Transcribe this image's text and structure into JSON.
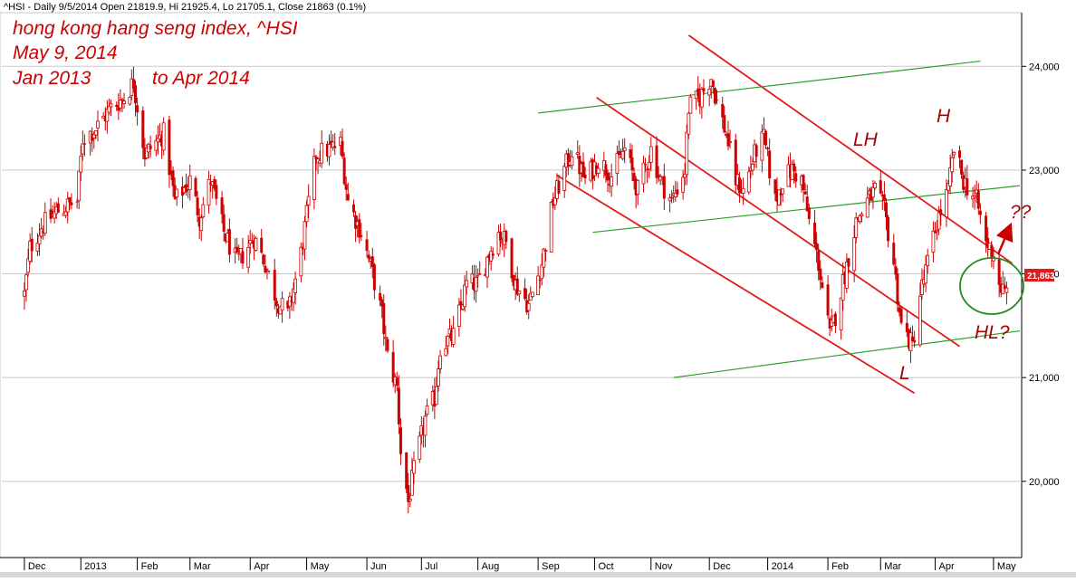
{
  "header": "^HSI - Daily 9/5/2014 Open 21819.9, Hi 21925.4, Lo 21705.1, Close 21863 (0.1%)",
  "annotations": {
    "line1": "hong kong hang seng index, ^HSI",
    "line2": "May 9, 2014",
    "line3a": "Jan 2013",
    "line3b": "to Apr 2014"
  },
  "pattern_labels": {
    "lh": "LH",
    "h": "H",
    "l": "L",
    "hl": "HL?",
    "question": "??"
  },
  "last_price": "21,863",
  "colors": {
    "candle": "#cc0000",
    "trend_red": "#e31a1a",
    "trend_green": "#2ca02c",
    "circle": "#228b22",
    "price_tag": "#e31a1a"
  },
  "chart_data": {
    "type": "candlestick",
    "title": "^HSI - Daily 9/5/2014 Open 21819.9, Hi 21925.4, Lo 21705.1, Close 21863 (0.1%)",
    "ylim": [
      19300,
      24500
    ],
    "y_ticks": [
      "20,000",
      "21,000",
      "22,000",
      "23,000",
      "24,000"
    ],
    "y_tick_values": [
      20000,
      21000,
      22000,
      23000,
      24000
    ],
    "x_tick_labels": [
      "Dec",
      "2013",
      "Feb",
      "Mar",
      "Apr",
      "May",
      "Jun",
      "Jul",
      "Aug",
      "Sep",
      "Oct",
      "Nov",
      "Dec",
      "2014",
      "Feb",
      "Mar",
      "Apr",
      "May"
    ],
    "x_tick_dates": [
      "2012-12-03",
      "2013-01-02",
      "2013-02-01",
      "2013-03-01",
      "2013-04-02",
      "2013-05-02",
      "2013-06-03",
      "2013-07-02",
      "2013-08-01",
      "2013-09-02",
      "2013-10-02",
      "2013-11-01",
      "2013-12-02",
      "2014-01-02",
      "2014-02-03",
      "2014-03-03",
      "2014-04-01",
      "2014-05-02"
    ],
    "x_range": [
      "2012-11-21",
      "2014-05-16"
    ],
    "series_path": [
      [
        "2012-12-03",
        21800
      ],
      [
        "2012-12-06",
        22250
      ],
      [
        "2012-12-12",
        22450
      ],
      [
        "2012-12-20",
        22600
      ],
      [
        "2012-12-31",
        22700
      ],
      [
        "2013-01-03",
        23300
      ],
      [
        "2013-01-10",
        23400
      ],
      [
        "2013-01-18",
        23600
      ],
      [
        "2013-01-25",
        23700
      ],
      [
        "2013-01-30",
        23850
      ],
      [
        "2013-02-05",
        23150
      ],
      [
        "2013-02-15",
        23350
      ],
      [
        "2013-02-21",
        22700
      ],
      [
        "2013-03-01",
        22900
      ],
      [
        "2013-03-06",
        22550
      ],
      [
        "2013-03-12",
        22900
      ],
      [
        "2013-03-19",
        22400
      ],
      [
        "2013-03-26",
        22100
      ],
      [
        "2013-04-04",
        22350
      ],
      [
        "2013-04-10",
        22100
      ],
      [
        "2013-04-16",
        21750
      ],
      [
        "2013-04-22",
        21600
      ],
      [
        "2013-04-29",
        22200
      ],
      [
        "2013-05-07",
        23150
      ],
      [
        "2013-05-14",
        23200
      ],
      [
        "2013-05-20",
        23250
      ],
      [
        "2013-05-24",
        22700
      ],
      [
        "2013-05-31",
        22400
      ],
      [
        "2013-06-06",
        22000
      ],
      [
        "2013-06-11",
        21600
      ],
      [
        "2013-06-14",
        21200
      ],
      [
        "2013-06-19",
        20900
      ],
      [
        "2013-06-21",
        20300
      ],
      [
        "2013-06-25",
        19800
      ],
      [
        "2013-06-28",
        20100
      ],
      [
        "2013-07-04",
        20600
      ],
      [
        "2013-07-09",
        20800
      ],
      [
        "2013-07-12",
        21300
      ],
      [
        "2013-07-19",
        21400
      ],
      [
        "2013-07-26",
        21900
      ],
      [
        "2013-08-01",
        21900
      ],
      [
        "2013-08-07",
        22200
      ],
      [
        "2013-08-12",
        22400
      ],
      [
        "2013-08-16",
        22300
      ],
      [
        "2013-08-21",
        21900
      ],
      [
        "2013-08-28",
        21700
      ],
      [
        "2013-09-04",
        22100
      ],
      [
        "2013-09-10",
        22700
      ],
      [
        "2013-09-16",
        23000
      ],
      [
        "2013-09-20",
        23200
      ],
      [
        "2013-09-27",
        22900
      ],
      [
        "2013-10-04",
        23100
      ],
      [
        "2013-10-11",
        22950
      ],
      [
        "2013-10-18",
        23200
      ],
      [
        "2013-10-25",
        22800
      ],
      [
        "2013-11-01",
        23200
      ],
      [
        "2013-11-06",
        22900
      ],
      [
        "2013-11-12",
        22700
      ],
      [
        "2013-11-19",
        23000
      ],
      [
        "2013-11-21",
        23600
      ],
      [
        "2013-11-27",
        23700
      ],
      [
        "2013-12-03",
        23900
      ],
      [
        "2013-12-06",
        23650
      ],
      [
        "2013-12-11",
        23350
      ],
      [
        "2013-12-16",
        22900
      ],
      [
        "2013-12-20",
        22800
      ],
      [
        "2013-12-27",
        23200
      ],
      [
        "2013-12-31",
        23300
      ],
      [
        "2014-01-06",
        22700
      ],
      [
        "2014-01-10",
        22900
      ],
      [
        "2014-01-15",
        23000
      ],
      [
        "2014-01-20",
        22900
      ],
      [
        "2014-01-24",
        22500
      ],
      [
        "2014-01-29",
        22100
      ],
      [
        "2014-02-04",
        21400
      ],
      [
        "2014-02-07",
        21600
      ],
      [
        "2014-02-12",
        22000
      ],
      [
        "2014-02-18",
        22500
      ],
      [
        "2014-02-24",
        22700
      ],
      [
        "2014-02-28",
        22800
      ],
      [
        "2014-03-05",
        22600
      ],
      [
        "2014-03-10",
        22100
      ],
      [
        "2014-03-14",
        21500
      ],
      [
        "2014-03-20",
        21300
      ],
      [
        "2014-03-24",
        21800
      ],
      [
        "2014-03-28",
        22100
      ],
      [
        "2014-04-02",
        22500
      ],
      [
        "2014-04-08",
        22800
      ],
      [
        "2014-04-11",
        23200
      ],
      [
        "2014-04-16",
        22900
      ],
      [
        "2014-04-23",
        22700
      ],
      [
        "2014-04-28",
        22300
      ],
      [
        "2014-05-02",
        22200
      ],
      [
        "2014-05-05",
        21900
      ],
      [
        "2014-05-08",
        21800
      ],
      [
        "2014-05-09",
        21863
      ]
    ],
    "last_bar": {
      "date": "2014-05-09",
      "open": 21819.9,
      "high": 21925.4,
      "low": 21705.1,
      "close": 21863
    },
    "trend_lines": [
      {
        "color": "red",
        "from": [
          "2013-11-21",
          24300
        ],
        "to": [
          "2014-05-12",
          22100
        ]
      },
      {
        "color": "red",
        "from": [
          "2013-10-03",
          23700
        ],
        "to": [
          "2014-04-14",
          21300
        ]
      },
      {
        "color": "red",
        "from": [
          "2013-09-12",
          22950
        ],
        "to": [
          "2014-03-21",
          20850
        ]
      },
      {
        "color": "green",
        "from": [
          "2013-09-02",
          23550
        ],
        "to": [
          "2014-04-25",
          24050
        ]
      },
      {
        "color": "green",
        "from": [
          "2013-10-01",
          22400
        ],
        "to": [
          "2014-05-16",
          22850
        ]
      },
      {
        "color": "green",
        "from": [
          "2013-11-13",
          21000
        ],
        "to": [
          "2014-05-16",
          21450
        ]
      }
    ],
    "highlight_circle": {
      "center": [
        "2014-05-08",
        21850
      ],
      "label": "HL?"
    }
  }
}
